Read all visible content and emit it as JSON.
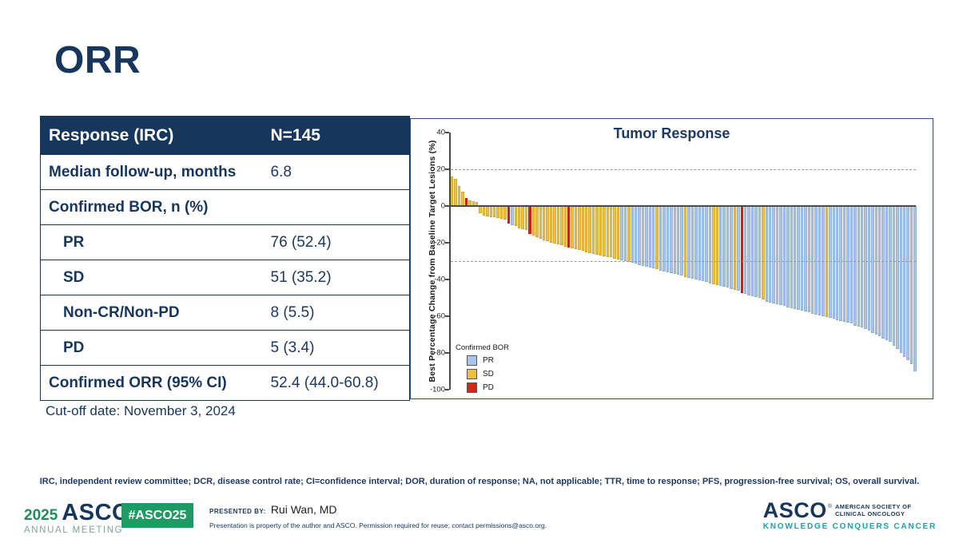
{
  "slide": {
    "title": "ORR",
    "cutoff_note": "Cut-off date: November 3, 2024",
    "footnote": "IRC, independent review committee; DCR, disease control rate; CI=confidence interval; DOR, duration of response; NA, not applicable; TTR, time to response; PFS, progression-free survival; OS, overall survival."
  },
  "table": {
    "header": {
      "label": "Response (IRC)",
      "value": "N=145"
    },
    "rows": [
      {
        "label": "Median follow-up, months",
        "value": "6.8",
        "indent": false
      },
      {
        "label": "Confirmed BOR, n (%)",
        "value": "",
        "indent": false
      },
      {
        "label": "PR",
        "value": "76 (52.4)",
        "indent": true
      },
      {
        "label": "SD",
        "value": "51 (35.2)",
        "indent": true
      },
      {
        "label": "Non-CR/Non-PD",
        "value": "8 (5.5)",
        "indent": true
      },
      {
        "label": "PD",
        "value": "5 (3.4)",
        "indent": true
      },
      {
        "label": "Confirmed ORR (95% CI)",
        "value": "52.4 (44.0-60.8)",
        "indent": false
      }
    ]
  },
  "chart_data": {
    "type": "bar",
    "subtype": "waterfall",
    "title": "Tumor Response",
    "xlabel": "",
    "ylabel": "Best Percentage Change from Baseline Target Lesions (%)",
    "ylim": [
      -100,
      40
    ],
    "yticks": [
      40,
      20,
      0,
      -20,
      -40,
      -60,
      -80,
      -100
    ],
    "reference_lines_dashed": [
      20,
      -30
    ],
    "zero_line": 0,
    "grid": false,
    "legend": {
      "title": "Confirmed BOR",
      "position": "lower-left",
      "entries": [
        {
          "label": "PR",
          "color": "#A9C5E8"
        },
        {
          "label": "SD",
          "color": "#EFC13A"
        },
        {
          "label": "PD",
          "color": "#D02718"
        }
      ]
    },
    "colors": {
      "PR": {
        "fill": "#A9C5E8",
        "border": "#7A9DC9"
      },
      "SD": {
        "fill": "#EFC13A",
        "border": "#BE9524"
      },
      "PD": {
        "fill": "#D02718",
        "border": "#A01810"
      }
    },
    "bars": [
      [
        16,
        "SD"
      ],
      [
        15,
        "SD"
      ],
      [
        11,
        "SD"
      ],
      [
        8,
        "SD"
      ],
      [
        4.5,
        "PD"
      ],
      [
        3,
        "SD"
      ],
      [
        2.5,
        "SD"
      ],
      [
        2,
        "SD"
      ],
      [
        -4,
        "SD"
      ],
      [
        -5,
        "SD"
      ],
      [
        -5.5,
        "SD"
      ],
      [
        -6,
        "SD"
      ],
      [
        -6,
        "SD"
      ],
      [
        -6.5,
        "SD"
      ],
      [
        -7,
        "SD"
      ],
      [
        -7.5,
        "SD"
      ],
      [
        -9.5,
        "PD"
      ],
      [
        -10.5,
        "PR"
      ],
      [
        -11,
        "SD"
      ],
      [
        -12,
        "SD"
      ],
      [
        -12.5,
        "SD"
      ],
      [
        -13,
        "SD"
      ],
      [
        -15,
        "PD"
      ],
      [
        -16,
        "SD"
      ],
      [
        -17,
        "SD"
      ],
      [
        -18,
        "SD"
      ],
      [
        -18.5,
        "SD"
      ],
      [
        -19,
        "SD"
      ],
      [
        -20,
        "SD"
      ],
      [
        -20.5,
        "SD"
      ],
      [
        -21,
        "SD"
      ],
      [
        -21.5,
        "SD"
      ],
      [
        -22,
        "SD"
      ],
      [
        -22.5,
        "PD"
      ],
      [
        -23,
        "SD"
      ],
      [
        -23.5,
        "SD"
      ],
      [
        -24,
        "SD"
      ],
      [
        -24.5,
        "SD"
      ],
      [
        -25,
        "SD"
      ],
      [
        -25.5,
        "SD"
      ],
      [
        -26,
        "SD"
      ],
      [
        -26.5,
        "SD"
      ],
      [
        -27,
        "SD"
      ],
      [
        -27.5,
        "SD"
      ],
      [
        -28,
        "SD"
      ],
      [
        -28,
        "SD"
      ],
      [
        -28.5,
        "SD"
      ],
      [
        -29,
        "SD"
      ],
      [
        -29.5,
        "PR"
      ],
      [
        -30,
        "PR"
      ],
      [
        -30.5,
        "SD"
      ],
      [
        -31,
        "PR"
      ],
      [
        -31.5,
        "PR"
      ],
      [
        -32,
        "PR"
      ],
      [
        -32.5,
        "PR"
      ],
      [
        -33,
        "PR"
      ],
      [
        -33.5,
        "PR"
      ],
      [
        -34,
        "PR"
      ],
      [
        -34.5,
        "SD"
      ],
      [
        -35,
        "PR"
      ],
      [
        -35.5,
        "PR"
      ],
      [
        -36,
        "PR"
      ],
      [
        -36.5,
        "PR"
      ],
      [
        -37,
        "PR"
      ],
      [
        -37.5,
        "PR"
      ],
      [
        -38,
        "PR"
      ],
      [
        -38.5,
        "SD"
      ],
      [
        -39,
        "PR"
      ],
      [
        -39.5,
        "PR"
      ],
      [
        -40,
        "PR"
      ],
      [
        -40.5,
        "PR"
      ],
      [
        -41,
        "PR"
      ],
      [
        -41.5,
        "PR"
      ],
      [
        -42,
        "PR"
      ],
      [
        -42.5,
        "SD"
      ],
      [
        -43,
        "SD"
      ],
      [
        -43.5,
        "PR"
      ],
      [
        -44,
        "PR"
      ],
      [
        -44.5,
        "PR"
      ],
      [
        -45,
        "PR"
      ],
      [
        -45.5,
        "SD"
      ],
      [
        -46,
        "PR"
      ],
      [
        -47.5,
        "PD"
      ],
      [
        -48,
        "PR"
      ],
      [
        -48.5,
        "PR"
      ],
      [
        -49,
        "PR"
      ],
      [
        -49.5,
        "PR"
      ],
      [
        -50,
        "PR"
      ],
      [
        -51,
        "SD"
      ],
      [
        -52,
        "PR"
      ],
      [
        -52.5,
        "PR"
      ],
      [
        -53,
        "PR"
      ],
      [
        -53.5,
        "PR"
      ],
      [
        -54,
        "PR"
      ],
      [
        -54.5,
        "PR"
      ],
      [
        -55,
        "PR"
      ],
      [
        -55.5,
        "PR"
      ],
      [
        -56,
        "PR"
      ],
      [
        -56.5,
        "PR"
      ],
      [
        -57,
        "PR"
      ],
      [
        -57.5,
        "PR"
      ],
      [
        -58,
        "PR"
      ],
      [
        -58.5,
        "PR"
      ],
      [
        -59,
        "PR"
      ],
      [
        -59.5,
        "PR"
      ],
      [
        -60,
        "PR"
      ],
      [
        -60.5,
        "SD"
      ],
      [
        -61,
        "PR"
      ],
      [
        -61.5,
        "PR"
      ],
      [
        -62,
        "PR"
      ],
      [
        -62.5,
        "PR"
      ],
      [
        -63,
        "PR"
      ],
      [
        -63.5,
        "PR"
      ],
      [
        -64,
        "PR"
      ],
      [
        -65,
        "PR"
      ],
      [
        -65.5,
        "PR"
      ],
      [
        -66,
        "PR"
      ],
      [
        -67,
        "PR"
      ],
      [
        -68,
        "PR"
      ],
      [
        -69,
        "PR"
      ],
      [
        -70,
        "PR"
      ],
      [
        -71,
        "PR"
      ],
      [
        -72,
        "PR"
      ],
      [
        -73,
        "PR"
      ],
      [
        -74,
        "PR"
      ],
      [
        -76,
        "PR"
      ],
      [
        -78,
        "PR"
      ],
      [
        -80,
        "PR"
      ],
      [
        -82,
        "PR"
      ],
      [
        -84,
        "PR"
      ],
      [
        -86,
        "PR"
      ],
      [
        -90,
        "PR"
      ]
    ]
  },
  "footer": {
    "meeting_logo": {
      "year": "2025",
      "org": "ASCO",
      "reg": "®",
      "sub": "ANNUAL MEETING"
    },
    "hashtag_badge": "#ASCO25",
    "presented_by_label": "PRESENTED BY:",
    "presenter": "Rui Wan, MD",
    "disclaimer": "Presentation is property of the author and ASCO. Permission required for reuse; contact permissions@asco.org.",
    "asco_logo": {
      "org": "ASCO",
      "reg": "®",
      "society_line1": "AMERICAN SOCIETY OF",
      "society_line2": "CLINICAL ONCOLOGY",
      "tagline": "KNOWLEDGE CONQUERS CANCER"
    },
    "brand_colors": {
      "navy": "#17365D",
      "green": "#1E9A62",
      "sage": "#7FA396",
      "teal": "#1B9FAC"
    }
  }
}
